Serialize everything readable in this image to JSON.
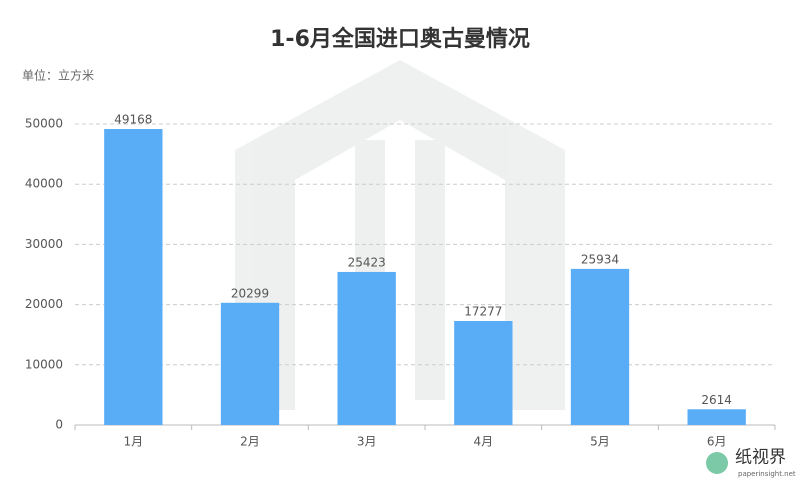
{
  "chart_data": {
    "type": "bar",
    "title": "1-6月全国进口奥古曼情况",
    "unit_label": "单位：立方米",
    "categories": [
      "1月",
      "2月",
      "3月",
      "4月",
      "5月",
      "6月"
    ],
    "values": [
      49168,
      20299,
      25423,
      17277,
      25934,
      2614
    ],
    "color": "#59adf6",
    "ylim": [
      0,
      50000
    ],
    "yticks": [
      0,
      10000,
      20000,
      30000,
      40000,
      50000
    ],
    "grid": true,
    "show_value_labels": true
  },
  "watermark": {
    "brand": "纸视界",
    "url": "paperinsight.net"
  }
}
